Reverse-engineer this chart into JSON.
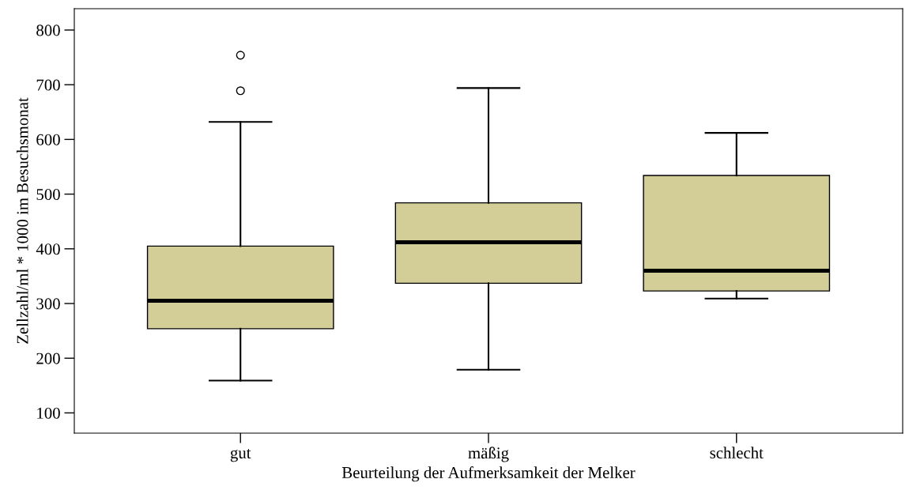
{
  "chart_data": {
    "type": "box",
    "xlabel": "Beurteilung der Aufmerksamkeit der Melker",
    "ylabel": "Zellzahl/ml * 1000 im Besuchsmonat",
    "categories": [
      "gut",
      "mäßig",
      "schlecht"
    ],
    "color": "#d3cd97",
    "boxes": [
      {
        "low": 159,
        "q1": 254,
        "median": 305,
        "q3": 405,
        "high": 632,
        "outliers": [
          689,
          754
        ]
      },
      {
        "low": 179,
        "q1": 337,
        "median": 412,
        "q3": 484,
        "high": 694
      },
      {
        "low": 309,
        "q1": 323,
        "median": 360,
        "q3": 534,
        "high": 612
      }
    ],
    "ylim": [
      63,
      839
    ],
    "yticks": [
      100,
      200,
      300,
      400,
      500,
      600,
      700,
      800
    ],
    "grid": false
  }
}
